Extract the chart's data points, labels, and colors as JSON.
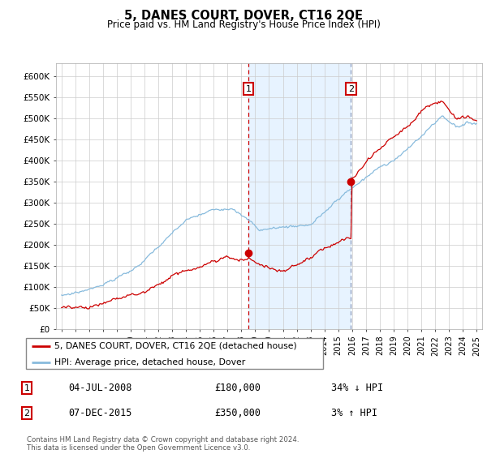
{
  "title": "5, DANES COURT, DOVER, CT16 2QE",
  "subtitle": "Price paid vs. HM Land Registry's House Price Index (HPI)",
  "yticks": [
    0,
    50000,
    100000,
    150000,
    200000,
    250000,
    300000,
    350000,
    400000,
    450000,
    500000,
    550000,
    600000
  ],
  "ytick_labels": [
    "£0",
    "£50K",
    "£100K",
    "£150K",
    "£200K",
    "£250K",
    "£300K",
    "£350K",
    "£400K",
    "£450K",
    "£500K",
    "£550K",
    "£600K"
  ],
  "sale1_date": "04-JUL-2008",
  "sale1_price": 180000,
  "sale1_pct": "34% ↓ HPI",
  "sale2_date": "07-DEC-2015",
  "sale2_price": 350000,
  "sale2_pct": "3% ↑ HPI",
  "sale1_x": 2008.5,
  "sale2_x": 2015.92,
  "legend_line1": "5, DANES COURT, DOVER, CT16 2QE (detached house)",
  "legend_line2": "HPI: Average price, detached house, Dover",
  "footer": "Contains HM Land Registry data © Crown copyright and database right 2024.\nThis data is licensed under the Open Government Licence v3.0.",
  "line_red": "#cc0000",
  "line_blue": "#88bbdd",
  "bg_color": "#ffffff",
  "grid_color": "#cccccc",
  "shade_color": "#ddeeff",
  "vline1_color": "#cc0000",
  "vline2_color": "#8899bb"
}
